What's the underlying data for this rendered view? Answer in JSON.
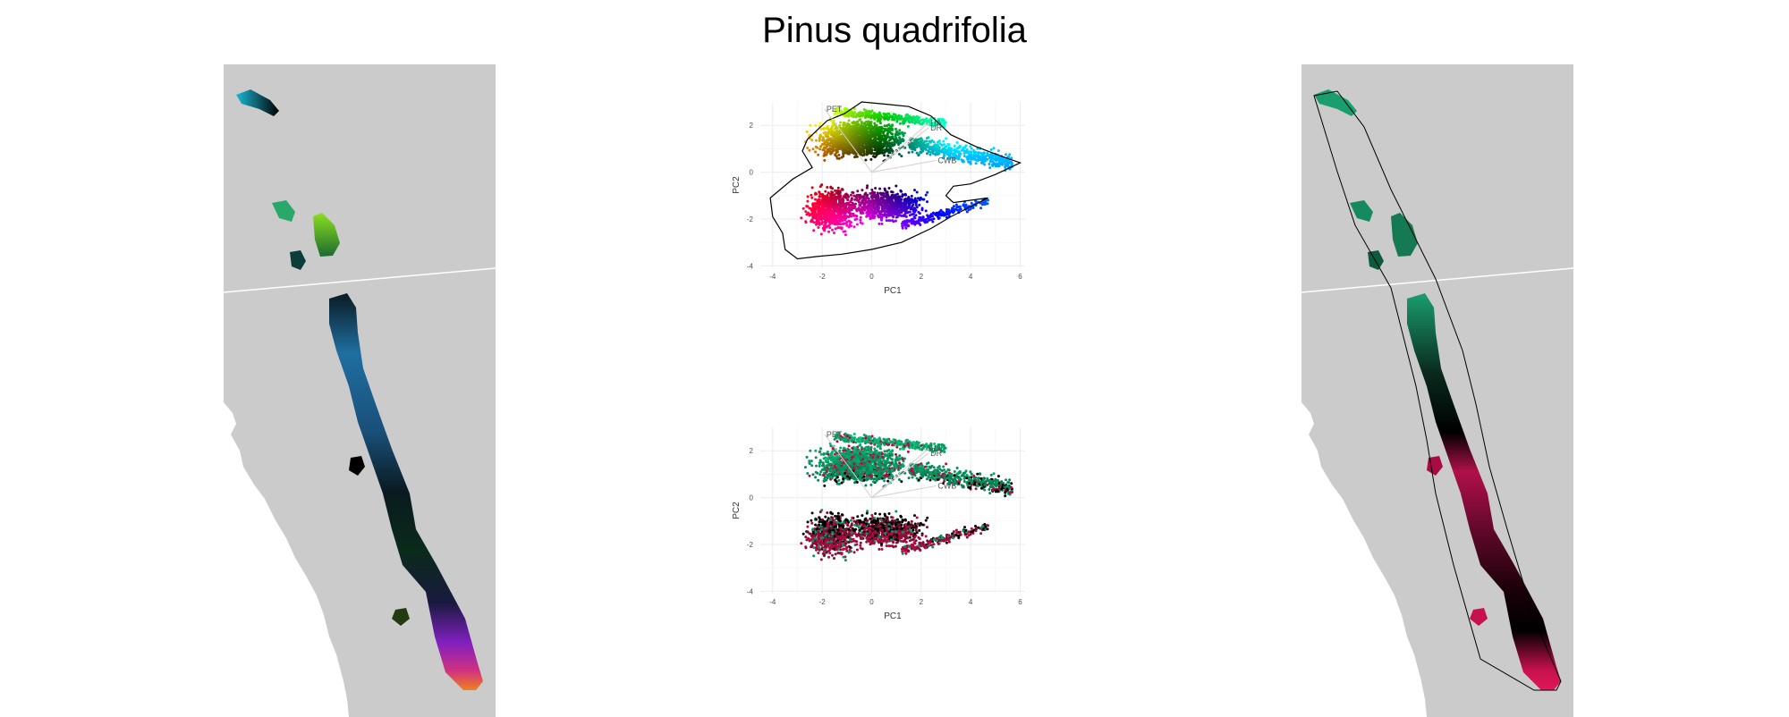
{
  "title": "Pinus quadrifolia",
  "colors": {
    "land": "#cbcbcb",
    "grid": "#ebebeb",
    "loading": "#d0d0d0",
    "green": "#1a9e6e",
    "crimson": "#c8104e",
    "border": "#ffffff"
  },
  "chart_data": [
    {
      "id": "pca-top",
      "type": "scatter",
      "xlabel": "PC1",
      "ylabel": "PC2",
      "xlim": [
        -4.5,
        6.2
      ],
      "ylim": [
        -4.1,
        3.0
      ],
      "xticks": [
        "-4",
        "-2",
        "0",
        "2",
        "4",
        "6"
      ],
      "yticks": [
        "-4",
        "-2",
        "0",
        "2"
      ],
      "color_mode": "hue by angle from origin (black near center)",
      "hull": true,
      "loadings": [
        {
          "label": "PET",
          "x": -1.9,
          "y": 2.7
        },
        {
          "label": "HA",
          "x": 2.3,
          "y": 2.1
        },
        {
          "label": "DR",
          "x": 2.3,
          "y": 1.9
        },
        {
          "label": "CWB",
          "x": 2.6,
          "y": 0.5
        }
      ]
    },
    {
      "id": "pca-bottom",
      "type": "scatter",
      "xlabel": "PC1",
      "ylabel": "PC2",
      "xlim": [
        -4.5,
        6.2
      ],
      "ylim": [
        -4.1,
        3.0
      ],
      "xticks": [
        "-4",
        "-2",
        "0",
        "2",
        "4",
        "6"
      ],
      "yticks": [
        "-4",
        "-2",
        "0",
        "2"
      ],
      "color_mode": "green (north) to black to crimson (south)",
      "hull": false,
      "loadings": [
        {
          "label": "PET",
          "x": -1.9,
          "y": 2.7
        },
        {
          "label": "HA",
          "x": 2.3,
          "y": 2.1
        },
        {
          "label": "DR",
          "x": 2.3,
          "y": 1.9
        },
        {
          "label": "CWB",
          "x": 2.6,
          "y": 0.5
        }
      ]
    }
  ]
}
